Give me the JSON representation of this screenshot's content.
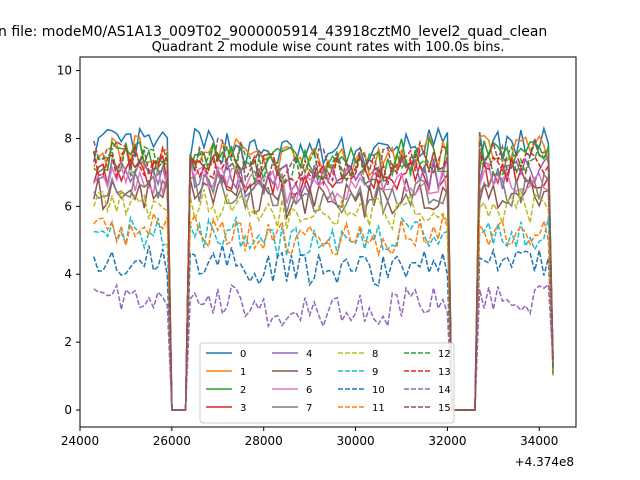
{
  "suptitle": "n file: modeM0/AS1A13_009T02_9000005914_43918cztM0_level2_quad_clean",
  "chart_data": {
    "type": "line",
    "title": "Quadrant 2 module wise count rates with 100.0s bins.",
    "xlabel": "",
    "ylabel": "",
    "x_offset_label": "+4.374e8",
    "xlim": [
      24000,
      34800
    ],
    "ylim": [
      -0.5,
      10.4
    ],
    "xticks": [
      "24000",
      "26000",
      "28000",
      "30000",
      "32000",
      "34000"
    ],
    "yticks": [
      "0",
      "2",
      "4",
      "6",
      "8",
      "10"
    ],
    "x_start": 24300,
    "x_step": 100,
    "legend_placement": "lower-center",
    "legend_columns": 4,
    "gaps": [
      [
        25900,
        26400
      ],
      [
        32000,
        32700
      ]
    ],
    "series": [
      {
        "name": "0",
        "color": "#1f77b4",
        "dash": "solid",
        "level": 7.8
      },
      {
        "name": "1",
        "color": "#ff7f0e",
        "dash": "solid",
        "level": 7.6
      },
      {
        "name": "2",
        "color": "#2ca02c",
        "dash": "solid",
        "level": 7.5
      },
      {
        "name": "3",
        "color": "#d62728",
        "dash": "solid",
        "level": 7.0
      },
      {
        "name": "4",
        "color": "#9467bd",
        "dash": "solid",
        "level": 7.0
      },
      {
        "name": "5",
        "color": "#8c564b",
        "dash": "solid",
        "level": 6.4
      },
      {
        "name": "6",
        "color": "#e377c2",
        "dash": "solid",
        "level": 6.8
      },
      {
        "name": "7",
        "color": "#7f7f7f",
        "dash": "solid",
        "level": 6.5
      },
      {
        "name": "8",
        "color": "#bcbd22",
        "dash": "dashed",
        "level": 6.0
      },
      {
        "name": "9",
        "color": "#17becf",
        "dash": "dashed",
        "level": 5.2
      },
      {
        "name": "10",
        "color": "#1f77b4",
        "dash": "dashed",
        "level": 4.4
      },
      {
        "name": "11",
        "color": "#ff7f0e",
        "dash": "dashed",
        "level": 5.3
      },
      {
        "name": "12",
        "color": "#2ca02c",
        "dash": "dashed",
        "level": 7.4
      },
      {
        "name": "13",
        "color": "#d62728",
        "dash": "dashed",
        "level": 7.3
      },
      {
        "name": "14",
        "color": "#9467bd",
        "dash": "dashed",
        "level": 3.2
      },
      {
        "name": "15",
        "color": "#8c564b",
        "dash": "dashed",
        "level": 7.5
      }
    ]
  }
}
